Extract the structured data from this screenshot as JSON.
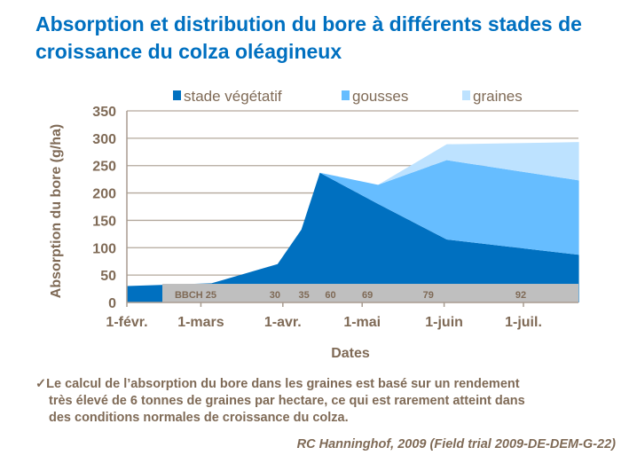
{
  "title": "Absorption et distribution du bore à différents stades de croissance du colza oléagineux",
  "chart_data": {
    "type": "area",
    "stacked": true,
    "xlabel": "Dates",
    "ylabel": "Absorption du bore (g/ha)",
    "ylim": [
      0,
      350
    ],
    "yticks": [
      0,
      50,
      100,
      150,
      200,
      250,
      300,
      350
    ],
    "xticks": [
      {
        "date": "02-01",
        "label": "1-févr."
      },
      {
        "date": "03-01",
        "label": "1-mars"
      },
      {
        "date": "04-01",
        "label": "1-avr."
      },
      {
        "date": "05-01",
        "label": "1-mai"
      },
      {
        "date": "06-01",
        "label": "1-juin"
      },
      {
        "date": "07-01",
        "label": "1-juil."
      }
    ],
    "grid": "horizontal",
    "legend_position": "top",
    "x": [
      "02-01",
      "03-05",
      "03-30",
      "04-08",
      "04-15",
      "05-07",
      "06-02",
      "07-22"
    ],
    "series": [
      {
        "name": "stade végétatif",
        "color": "#0070c0",
        "values": [
          30,
          35,
          70,
          133,
          237,
          180,
          115,
          87
        ]
      },
      {
        "name": "gousses",
        "color": "#66bdff",
        "values": [
          0,
          0,
          0,
          0,
          0,
          35,
          145,
          136
        ]
      },
      {
        "name": "graines",
        "color": "#bde2ff",
        "values": [
          0,
          0,
          0,
          0,
          0,
          0,
          29,
          70
        ]
      }
    ],
    "bbch_band_color": "#bfbfbf",
    "bbch_stages": [
      {
        "date": "02-27",
        "label": "BBCH 25"
      },
      {
        "date": "03-29",
        "label": "30"
      },
      {
        "date": "04-09",
        "label": "35"
      },
      {
        "date": "04-19",
        "label": "60"
      },
      {
        "date": "05-03",
        "label": "69"
      },
      {
        "date": "05-26",
        "label": "79"
      },
      {
        "date": "06-30",
        "label": "92"
      }
    ]
  },
  "note": {
    "check_icon": "✓",
    "line1": "Le calcul de l’absorption du bore dans les graines est basé sur un rendement",
    "line2": "très élevé de 6 tonnes de graines par hectare, ce qui est rarement atteint dans",
    "line3": "des conditions normales de croissance du colza."
  },
  "source": "RC Hanninghof, 2009 (Field trial 2009-DE-DEM-G-22)"
}
